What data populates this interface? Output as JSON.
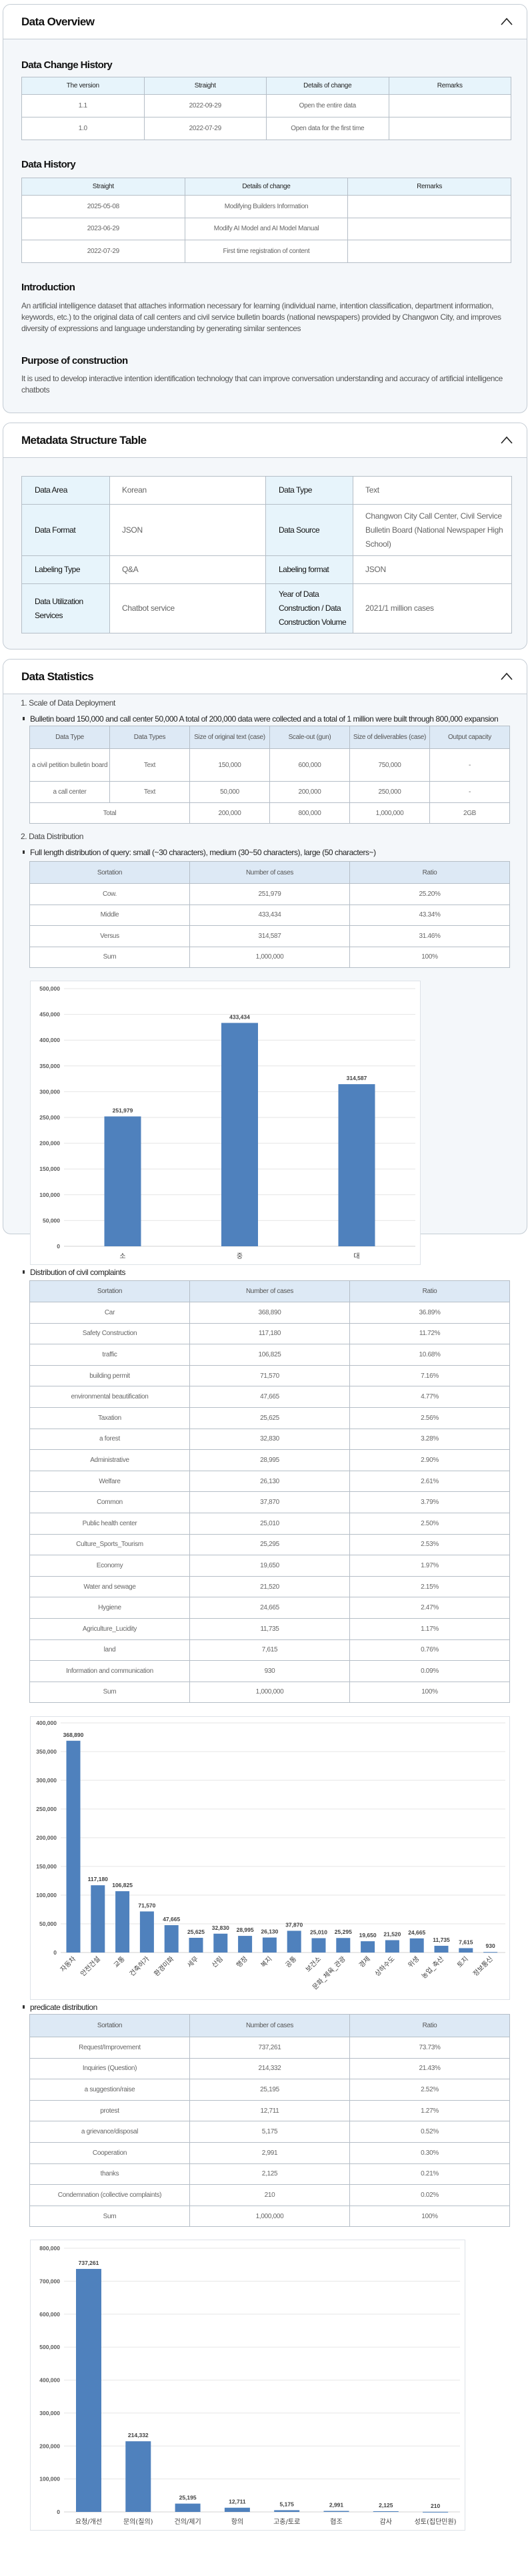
{
  "overview": {
    "title": "Data Overview",
    "change_history": {
      "title": "Data Change History",
      "headers": [
        "The version",
        "Straight",
        "Details of change",
        "Remarks"
      ],
      "rows": [
        [
          "1.1",
          "2022-09-29",
          "Open the entire data",
          ""
        ],
        [
          "1.0",
          "2022-07-29",
          "Open data for the first time",
          ""
        ]
      ]
    },
    "data_history": {
      "title": "Data History",
      "headers": [
        "Straight",
        "Details of change",
        "Remarks"
      ],
      "rows": [
        [
          "2025-05-08",
          "Modifying Builders Information",
          ""
        ],
        [
          "2023-06-29",
          "Modify AI Model and AI Model Manual",
          ""
        ],
        [
          "2022-07-29",
          "First time registration of content",
          ""
        ]
      ]
    },
    "introduction": {
      "title": "Introduction",
      "text": "An artificial intelligence dataset that attaches information necessary for learning (individual name, intention classification, department information, keywords, etc.) to the original data of call centers and civil service bulletin boards (national newspapers) provided by Changwon City, and improves diversity of expressions and language understanding by generating similar sentences"
    },
    "purpose": {
      "title": "Purpose of construction",
      "text": "It is used to develop interactive intention identification technology that can improve conversation understanding and accuracy of artificial intelligence chatbots"
    }
  },
  "metadata": {
    "title": "Metadata Structure Table",
    "rows": [
      [
        {
          "k": "Data Area",
          "v": "Korean"
        },
        {
          "k": "Data Type",
          "v": "Text"
        }
      ],
      [
        {
          "k": "Data Format",
          "v": "JSON"
        },
        {
          "k": "Data Source",
          "v": "Changwon City Call Center, Civil Service Bulletin Board (National Newspaper High School)"
        }
      ],
      [
        {
          "k": "Labeling Type",
          "v": "Q&A"
        },
        {
          "k": "Labeling format",
          "v": "JSON"
        }
      ],
      [
        {
          "k": "Data Utilization Services",
          "v": "Chatbot service"
        },
        {
          "k": "Year of Data Construction / Data Construction Volume",
          "v": "2021/1 million cases"
        }
      ]
    ]
  },
  "statistics": {
    "title": "Data Statistics",
    "scale_heading": "1. Scale of Data Deployment",
    "scale_bullet": "Bulletin board 150,000 and call center 50,000 A total of 200,000 data were collected and a total of 1 million were built through 800,000 expansion",
    "scale_table": {
      "headers": [
        "Data Type",
        "Data Types",
        "Size of original text (case)",
        "Scale-out (gun)",
        "Size of deliverables (case)",
        "Output capacity"
      ],
      "rows": [
        [
          "a civil petition bulletin board",
          "Text",
          "150,000",
          "600,000",
          "750,000",
          "-"
        ],
        [
          "a call center",
          "Text",
          "50,000",
          "200,000",
          "250,000",
          "-"
        ]
      ],
      "total": [
        "Total",
        "200,000",
        "800,000",
        "1,000,000",
        "2GB"
      ]
    },
    "distribution_heading": "2. Data Distribution",
    "length_bullet": "Full length distribution of query: small (~30 characters), medium (30~50 characters), large (50 characters~)",
    "length_table": {
      "headers": [
        "Sortation",
        "Number of cases",
        "Ratio"
      ],
      "rows": [
        [
          "Cow.",
          "251,979",
          "25.20%"
        ],
        [
          "Middle",
          "433,434",
          "43.34%"
        ],
        [
          "Versus",
          "314,587",
          "31.46%"
        ],
        [
          "Sum",
          "1,000,000",
          "100%"
        ]
      ]
    },
    "complaints_bullet": "Distribution of civil complaints",
    "complaints_table": {
      "headers": [
        "Sortation",
        "Number of cases",
        "Ratio"
      ],
      "rows": [
        [
          "Car",
          "368,890",
          "36.89%"
        ],
        [
          "Safety Construction",
          "117,180",
          "11.72%"
        ],
        [
          "traffic",
          "106,825",
          "10.68%"
        ],
        [
          "building permit",
          "71,570",
          "7.16%"
        ],
        [
          "environmental beautification",
          "47,665",
          "4.77%"
        ],
        [
          "Taxation",
          "25,625",
          "2.56%"
        ],
        [
          "a forest",
          "32,830",
          "3.28%"
        ],
        [
          "Administrative",
          "28,995",
          "2.90%"
        ],
        [
          "Welfare",
          "26,130",
          "2.61%"
        ],
        [
          "Common",
          "37,870",
          "3.79%"
        ],
        [
          "Public health center",
          "25,010",
          "2.50%"
        ],
        [
          "Culture_Sports_Tourism",
          "25,295",
          "2.53%"
        ],
        [
          "Economy",
          "19,650",
          "1.97%"
        ],
        [
          "Water and sewage",
          "21,520",
          "2.15%"
        ],
        [
          "Hygiene",
          "24,665",
          "2.47%"
        ],
        [
          "Agriculture_Lucidity",
          "11,735",
          "1.17%"
        ],
        [
          "land",
          "7,615",
          "0.76%"
        ],
        [
          "Information and communication",
          "930",
          "0.09%"
        ],
        [
          "Sum",
          "1,000,000",
          "100%"
        ]
      ]
    },
    "predicate_bullet": "predicate distribution",
    "predicate_table": {
      "headers": [
        "Sortation",
        "Number of cases",
        "Ratio"
      ],
      "rows": [
        [
          "Request/Improvement",
          "737,261",
          "73.73%"
        ],
        [
          "Inquiries (Question)",
          "214,332",
          "21.43%"
        ],
        [
          "a suggestion/raise",
          "25,195",
          "2.52%"
        ],
        [
          "protest",
          "12,711",
          "1.27%"
        ],
        [
          "a grievance/disposal",
          "5,175",
          "0.52%"
        ],
        [
          "Cooperation",
          "2,991",
          "0.30%"
        ],
        [
          "thanks",
          "2,125",
          "0.21%"
        ],
        [
          "Condemnation (collective complaints)",
          "210",
          "0.02%"
        ],
        [
          "Sum",
          "1,000,000",
          "100%"
        ]
      ]
    }
  },
  "colors": {
    "bar": "#4f81bd",
    "accent_header": "#e7f4fb",
    "stat_header": "#dde9f5"
  },
  "icons": {
    "collapse": "chevron-up-icon"
  },
  "chart_data": [
    {
      "type": "bar",
      "title": "",
      "xlabel": "",
      "ylabel": "",
      "categories": [
        "소",
        "중",
        "대"
      ],
      "values": [
        251979,
        433434,
        314587
      ],
      "data_labels": [
        "251,979",
        "433,434",
        "314,587"
      ],
      "ylim": [
        0,
        500000
      ],
      "yticks": [
        "0",
        "50,000",
        "100,000",
        "150,000",
        "200,000",
        "250,000",
        "300,000",
        "350,000",
        "400,000",
        "450,000",
        "500,000"
      ],
      "grid": true
    },
    {
      "type": "bar",
      "title": "",
      "xlabel": "",
      "ylabel": "",
      "categories": [
        "자동차",
        "안전건설",
        "교통",
        "건축허가",
        "환경미화",
        "세무",
        "산림",
        "행정",
        "복지",
        "공통",
        "보건소",
        "문화_체육_관광",
        "경제",
        "상하수도",
        "위생",
        "농업_축산",
        "토지",
        "정보통신"
      ],
      "values": [
        368890,
        117180,
        106825,
        71570,
        47665,
        25625,
        32830,
        28995,
        26130,
        37870,
        25010,
        25295,
        19650,
        21520,
        24665,
        11735,
        7615,
        930
      ],
      "data_labels": [
        "368,890",
        "117,180",
        "106,825",
        "71,570",
        "47,665",
        "25,625",
        "32,830",
        "28,995",
        "26,130",
        "37,870",
        "25,010",
        "25,295",
        "19,650",
        "21,520",
        "24,665",
        "11,735",
        "7,615",
        "930"
      ],
      "ylim": [
        0,
        400000
      ],
      "yticks": [
        "0",
        "50,000",
        "100,000",
        "150,000",
        "200,000",
        "250,000",
        "300,000",
        "350,000",
        "400,000"
      ],
      "grid": true
    },
    {
      "type": "bar",
      "title": "",
      "xlabel": "",
      "ylabel": "",
      "categories": [
        "요청/개선",
        "문의(질의)",
        "건의/제기",
        "항의",
        "고충/토로",
        "협조",
        "감사",
        "성토(집단민원)"
      ],
      "values": [
        737261,
        214332,
        25195,
        12711,
        5175,
        2991,
        2125,
        210
      ],
      "data_labels": [
        "737,261",
        "214,332",
        "25,195",
        "12,711",
        "5,175",
        "2,991",
        "2,125",
        "210"
      ],
      "ylim": [
        0,
        800000
      ],
      "yticks": [
        "0",
        "100,000",
        "200,000",
        "300,000",
        "400,000",
        "500,000",
        "600,000",
        "700,000",
        "800,000"
      ],
      "grid": true
    }
  ]
}
